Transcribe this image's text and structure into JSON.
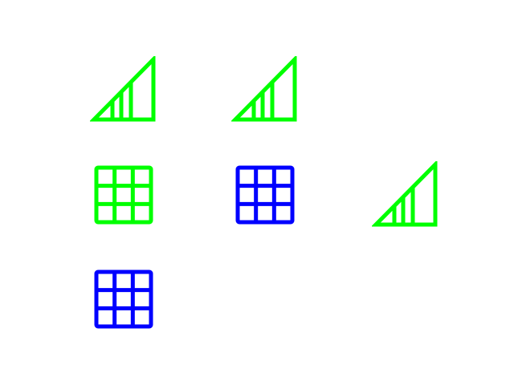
{
  "shapes": [
    {
      "kind": "signal",
      "color": "#00ff00",
      "icon": "signal-bars-icon"
    },
    {
      "kind": "signal",
      "color": "#00ff00",
      "icon": "signal-bars-icon"
    },
    {
      "kind": "grid",
      "color": "#00ff00",
      "icon": "grid-icon"
    },
    {
      "kind": "grid",
      "color": "#0000ff",
      "icon": "grid-icon"
    },
    {
      "kind": "signal",
      "color": "#00ff00",
      "icon": "signal-bars-icon"
    },
    {
      "kind": "grid",
      "color": "#0000ff",
      "icon": "grid-icon"
    }
  ]
}
